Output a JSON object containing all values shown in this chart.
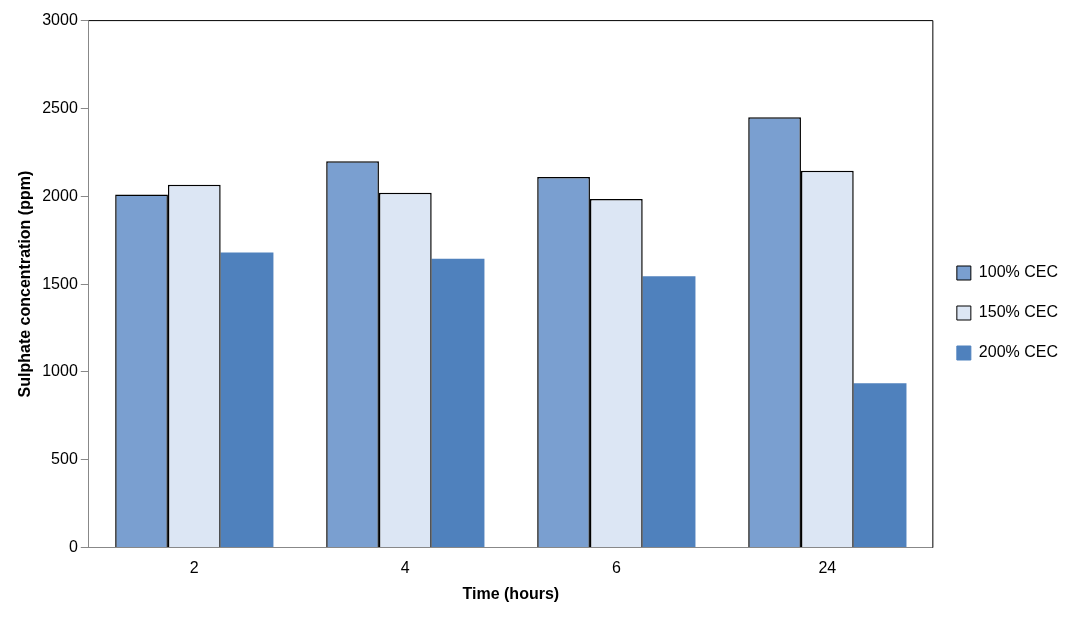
{
  "chart_data": {
    "type": "bar",
    "xlabel": "Time (hours)",
    "ylabel": "Sulphate concentration (ppm)",
    "categories": [
      "2",
      "4",
      "6",
      "24"
    ],
    "series": [
      {
        "name": "100% CEC",
        "color": "#7a9fd0",
        "values": [
          2010,
          2200,
          2110,
          2450
        ]
      },
      {
        "name": "150% CEC",
        "color": "#dce6f4",
        "values": [
          2065,
          2020,
          1985,
          2145
        ]
      },
      {
        "name": "200% CEC",
        "color": "#4f81bd",
        "values": [
          1680,
          1645,
          1545,
          935
        ]
      }
    ],
    "ylim": [
      0,
      3000
    ],
    "yticks": [
      0,
      500,
      1000,
      1500,
      2000,
      2500,
      3000
    ],
    "grid": false,
    "legend": "right"
  }
}
